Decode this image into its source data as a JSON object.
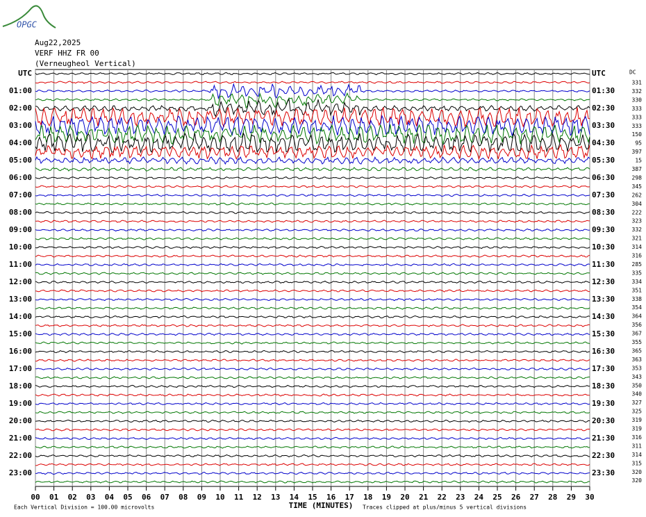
{
  "logo": "OPGC",
  "header": {
    "date": "Aug22,2025",
    "station": "VERF HHZ FR 00",
    "site": "(Verneugheol Vertical)"
  },
  "left_labels": [
    "UTC",
    "01:00",
    "02:00",
    "03:00",
    "04:00",
    "05:00",
    "06:00",
    "07:00",
    "08:00",
    "09:00",
    "10:00",
    "11:00",
    "12:00",
    "13:00",
    "14:00",
    "15:00",
    "16:00",
    "17:00",
    "18:00",
    "19:00",
    "20:00",
    "21:00",
    "22:00",
    "23:00"
  ],
  "right_labels": [
    "UTC",
    "01:30",
    "02:30",
    "03:30",
    "04:30",
    "05:30",
    "06:30",
    "07:30",
    "08:30",
    "09:30",
    "10:30",
    "11:30",
    "12:30",
    "13:30",
    "14:30",
    "15:30",
    "16:30",
    "17:30",
    "18:30",
    "19:30",
    "20:30",
    "21:30",
    "22:30",
    "23:30"
  ],
  "dc_label": "DC",
  "dc_values": [
    "331",
    "332",
    "330",
    "333",
    "333",
    "333",
    "150",
    "95",
    "397",
    "15",
    "387",
    "298",
    "345",
    "262",
    "304",
    "222",
    "323",
    "332",
    "321",
    "314",
    "316",
    "285",
    "335",
    "334",
    "351",
    "338",
    "354",
    "364",
    "356",
    "367",
    "355",
    "365",
    "363",
    "353",
    "343",
    "350",
    "340",
    "327",
    "325",
    "319",
    "319",
    "316",
    "311",
    "314",
    "315",
    "320",
    "320"
  ],
  "x_ticks": [
    "00",
    "01",
    "02",
    "03",
    "04",
    "05",
    "06",
    "07",
    "08",
    "09",
    "10",
    "11",
    "12",
    "13",
    "14",
    "15",
    "16",
    "17",
    "18",
    "19",
    "20",
    "21",
    "22",
    "23",
    "24",
    "25",
    "26",
    "27",
    "28",
    "29",
    "30"
  ],
  "x_label": "TIME (MINUTES)",
  "footer": {
    "scale": "Each Vertical Division =  100.00 microvolts",
    "clip": "Traces clipped at plus/minus 5 vertical divisions"
  }
}
